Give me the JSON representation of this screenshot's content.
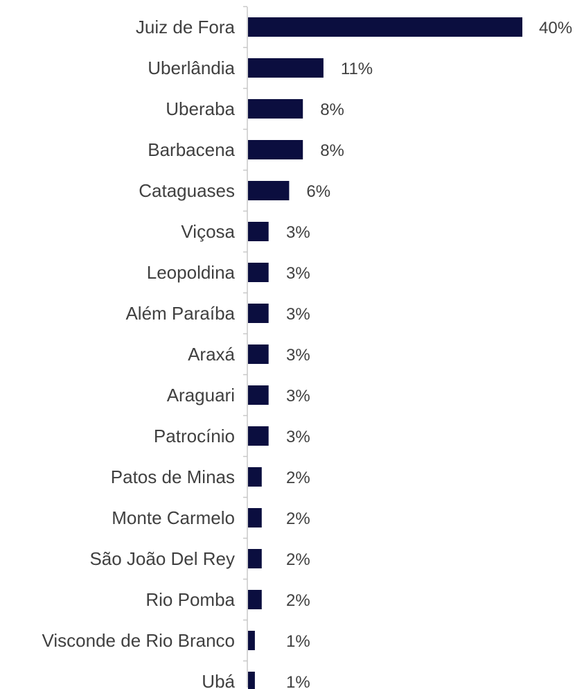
{
  "chart_data": {
    "type": "bar",
    "orientation": "horizontal",
    "title": "",
    "xlabel": "",
    "ylabel": "",
    "grid": false,
    "legend": "none",
    "bar_color": "#0b0e3f",
    "xlim": [
      0,
      40
    ],
    "categories": [
      "Juiz de Fora",
      "Uberlândia",
      "Uberaba",
      "Barbacena",
      "Cataguases",
      "Viçosa",
      "Leopoldina",
      "Além Paraíba",
      "Araxá",
      "Araguari",
      "Patrocínio",
      "Patos  de  Minas",
      "Monte Carmelo",
      "São João Del Rey",
      "Rio Pomba",
      "Visconde de Rio Branco",
      "Ubá"
    ],
    "values": [
      40,
      11,
      8,
      8,
      6,
      3,
      3,
      3,
      3,
      3,
      3,
      2,
      2,
      2,
      2,
      1,
      1
    ],
    "value_labels": [
      "40%",
      "11%",
      "8%",
      "8%",
      "6%",
      "3%",
      "3%",
      "3%",
      "3%",
      "3%",
      "3%",
      "2%",
      "2%",
      "2%",
      "2%",
      "1%",
      "1%"
    ]
  }
}
